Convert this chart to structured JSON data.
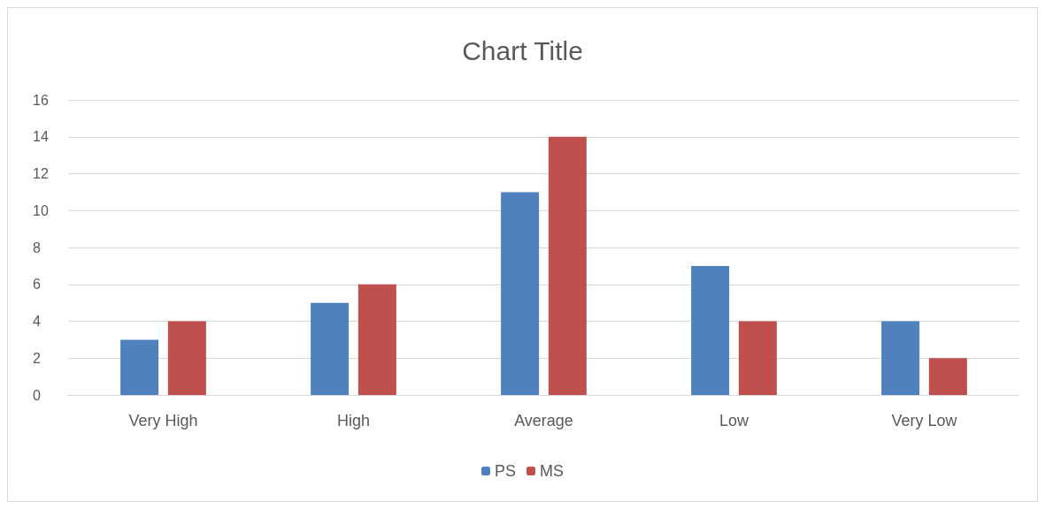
{
  "chart_data": {
    "type": "bar",
    "title": "Chart Title",
    "categories": [
      "Very High",
      "High",
      "Average",
      "Low",
      "Very Low"
    ],
    "series": [
      {
        "name": "PS",
        "color": "#4f81bd",
        "values": [
          3,
          5,
          11,
          7,
          4
        ]
      },
      {
        "name": "MS",
        "color": "#c0504d",
        "values": [
          4,
          6,
          14,
          4,
          2
        ]
      }
    ],
    "ylim": [
      0,
      16
    ],
    "yticks": [
      0,
      2,
      4,
      6,
      8,
      10,
      12,
      14,
      16
    ],
    "grid": "y",
    "legend": "bottom"
  }
}
